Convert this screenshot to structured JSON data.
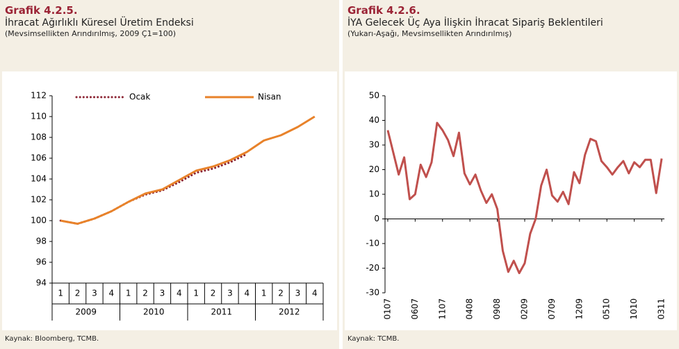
{
  "chart_data": [
    {
      "type": "line",
      "title": "Grafik 4.2.5.",
      "subtitle": "İhracat Ağırlıklı Küresel Üretim Endeksi",
      "note": "(Mevsimsellikten Arındırılmış, 2009 Ç1=100)",
      "source": "Kaynak: Bloomberg, TCMB.",
      "categories": [
        "1",
        "2",
        "3",
        "4",
        "1",
        "2",
        "3",
        "4",
        "1",
        "2",
        "3",
        "4",
        "1",
        "2",
        "3",
        "4"
      ],
      "category_groups": [
        "2009",
        "2010",
        "2011",
        "2012"
      ],
      "series": [
        {
          "name": "Ocak",
          "color": "#8b2332",
          "dash": "dotted",
          "values": [
            100,
            99.7,
            100.2,
            100.9,
            101.8,
            102.5,
            102.9,
            103.7,
            104.6,
            105.0,
            105.6,
            106.4,
            null,
            null,
            null,
            null
          ]
        },
        {
          "name": "Nisan",
          "color": "#e8822a",
          "values": [
            100,
            99.7,
            100.2,
            100.9,
            101.8,
            102.6,
            103.0,
            103.9,
            104.8,
            105.2,
            105.8,
            106.6,
            107.7,
            108.2,
            109.0,
            110.0
          ]
        }
      ],
      "ylim": [
        94,
        112
      ],
      "yticks": [
        94,
        96,
        98,
        100,
        102,
        104,
        106,
        108,
        110,
        112
      ],
      "legend": "top"
    },
    {
      "type": "line",
      "title": "Grafik 4.2.6.",
      "subtitle": "İYA Gelecek Üç Aya İlişkin İhracat Sipariş Beklentileri",
      "note": "(Yukarı-Aşağı, Mevsimsellikten Arındırılmış)",
      "source": "Kaynak: TCMB.",
      "categories": [
        "0107",
        null,
        null,
        null,
        null,
        "0607",
        null,
        null,
        null,
        null,
        "1107",
        null,
        null,
        null,
        null,
        "0408",
        null,
        null,
        null,
        null,
        "0908",
        null,
        null,
        null,
        null,
        "0209",
        null,
        null,
        null,
        null,
        "0709",
        null,
        null,
        null,
        null,
        "1209",
        null,
        null,
        null,
        null,
        "0510",
        null,
        null,
        null,
        null,
        "1010",
        null,
        null,
        null,
        null,
        "0311"
      ],
      "series": [
        {
          "color": "#c0504d",
          "values": [
            36,
            27,
            18,
            25,
            8,
            10,
            22,
            17,
            23,
            39,
            36,
            32,
            25.5,
            35,
            18.5,
            14,
            18,
            11.5,
            6.5,
            10,
            4,
            -13,
            -21.5,
            -17,
            -22,
            -18,
            -6,
            0,
            13.5,
            20,
            9.5,
            7,
            11,
            6,
            19,
            14.5,
            26,
            32.5,
            31.5,
            23.5,
            21,
            18,
            21,
            23.5,
            18.5,
            23,
            21,
            24,
            24,
            10.5,
            24.5
          ]
        }
      ],
      "ylim": [
        -30,
        50
      ],
      "yticks": [
        -30,
        -20,
        -10,
        0,
        10,
        20,
        30,
        40,
        50
      ]
    }
  ]
}
